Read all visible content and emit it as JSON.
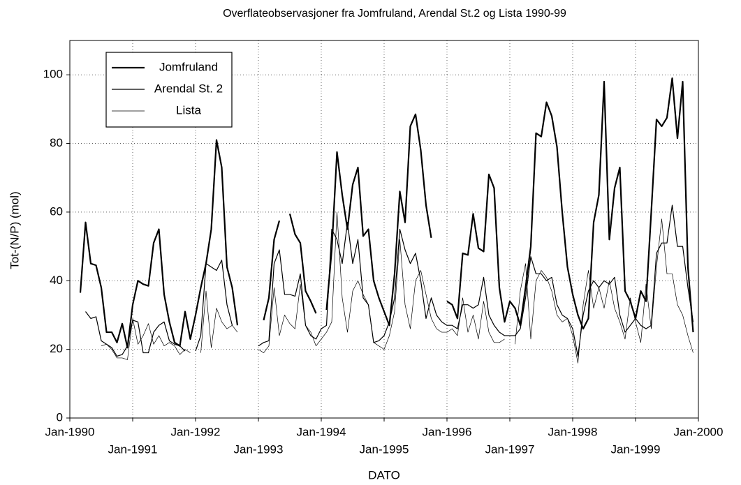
{
  "chart_data": {
    "type": "line",
    "title": "Overflateobservasjoner fra Jomfruland, Arendal St.2 og Lista 1990-99",
    "x_label": "DATO",
    "y_label": "Tot-(N/P) (mol)",
    "x": [
      "1990-03",
      "1990-04",
      "1990-05",
      "1990-06",
      "1990-07",
      "1990-08",
      "1990-09",
      "1990-10",
      "1990-11",
      "1990-12",
      "1991-01",
      "1991-02",
      "1991-03",
      "1991-04",
      "1991-05",
      "1991-06",
      "1991-07",
      "1991-08",
      "1991-09",
      "1991-10",
      "1991-11",
      "1991-12",
      "1992-01",
      "1992-02",
      "1992-03",
      "1992-04",
      "1992-05",
      "1992-06",
      "1992-07",
      "1992-08",
      "1992-09",
      "1992-10",
      "1992-11",
      "1992-12",
      "1993-01",
      "1993-02",
      "1993-03",
      "1993-04",
      "1993-05",
      "1993-06",
      "1993-07",
      "1993-08",
      "1993-09",
      "1993-10",
      "1993-11",
      "1993-12",
      "1994-01",
      "1994-02",
      "1994-03",
      "1994-04",
      "1994-05",
      "1994-06",
      "1994-07",
      "1994-08",
      "1994-09",
      "1994-10",
      "1994-11",
      "1994-12",
      "1995-01",
      "1995-02",
      "1995-03",
      "1995-04",
      "1995-05",
      "1995-06",
      "1995-07",
      "1995-08",
      "1995-09",
      "1995-10",
      "1995-11",
      "1995-12",
      "1996-01",
      "1996-02",
      "1996-03",
      "1996-04",
      "1996-05",
      "1996-06",
      "1996-07",
      "1996-08",
      "1996-09",
      "1996-10",
      "1996-11",
      "1996-12",
      "1997-01",
      "1997-02",
      "1997-03",
      "1997-04",
      "1997-05",
      "1997-06",
      "1997-07",
      "1997-08",
      "1997-09",
      "1997-10",
      "1997-11",
      "1997-12",
      "1998-01",
      "1998-02",
      "1998-03",
      "1998-04",
      "1998-05",
      "1998-06",
      "1998-07",
      "1998-08",
      "1998-09",
      "1998-10",
      "1998-11",
      "1998-12",
      "1999-01",
      "1999-02",
      "1999-03",
      "1999-04",
      "1999-05",
      "1999-06",
      "1999-07",
      "1999-08",
      "1999-09",
      "1999-10",
      "1999-11",
      "1999-12"
    ],
    "series": [
      {
        "name": "Jomfruland",
        "color": "#000000",
        "linewidth": 2.2,
        "values": [
          36.5,
          57,
          45,
          44.5,
          38,
          25,
          25,
          22,
          27.5,
          20.5,
          33,
          40,
          39,
          38.5,
          51,
          55,
          36,
          28,
          22,
          21,
          31,
          23,
          30,
          38,
          45,
          55,
          81,
          73,
          44,
          38,
          27,
          null,
          null,
          null,
          null,
          28.5,
          35,
          52,
          57.5,
          null,
          59.5,
          53.5,
          51,
          37,
          34,
          30.5,
          null,
          31.5,
          49,
          77.5,
          65,
          55,
          68,
          73,
          53,
          55,
          40,
          35,
          31,
          27,
          42,
          66,
          57,
          85,
          88.5,
          78,
          62,
          52.5,
          null,
          null,
          34,
          33,
          29,
          48,
          47.5,
          59.5,
          49.5,
          48.5,
          71,
          67,
          38,
          28,
          34,
          32,
          27,
          38,
          50,
          83,
          82,
          92,
          88,
          79,
          60,
          44,
          36,
          30,
          26,
          29,
          57,
          65,
          98,
          52,
          67,
          73,
          37,
          34,
          29,
          37,
          34,
          60,
          87,
          85,
          87.5,
          99,
          81.5,
          98,
          44,
          25
        ]
      },
      {
        "name": "Arendal St. 2",
        "color": "#000000",
        "linewidth": 1.2,
        "values": [
          null,
          31,
          29,
          29.5,
          22.5,
          21.5,
          20.5,
          18,
          18.5,
          21,
          28.5,
          28,
          19,
          19,
          25,
          27,
          28,
          22.5,
          21.5,
          21,
          19.5,
          null,
          19.5,
          24,
          45,
          44,
          43,
          46,
          33,
          27,
          null,
          null,
          null,
          null,
          21,
          22,
          22.5,
          45,
          49,
          36,
          36,
          35.5,
          42,
          27,
          24,
          23,
          26,
          27,
          55,
          52,
          45,
          57,
          45,
          52,
          35,
          33,
          22,
          22.5,
          24,
          28,
          35,
          55,
          49,
          45,
          48,
          40,
          29,
          35,
          30,
          28,
          27,
          27,
          26,
          33,
          33,
          32,
          33,
          41,
          30,
          27,
          25,
          24,
          24,
          24,
          26,
          35,
          47,
          42,
          42,
          40,
          41,
          33,
          30,
          29,
          26,
          18,
          30,
          37,
          40,
          38,
          40,
          39,
          41,
          30,
          25,
          27,
          29,
          27,
          26,
          27,
          48,
          51,
          51,
          62,
          50,
          50,
          38,
          28
        ]
      },
      {
        "name": "Lista",
        "color": "#000000",
        "linewidth": 0.7,
        "values": [
          null,
          null,
          null,
          null,
          21,
          21.5,
          20,
          17.5,
          17.5,
          17,
          29,
          21.5,
          24,
          27.5,
          21.5,
          24,
          21,
          22,
          21,
          18.5,
          20,
          19,
          null,
          19,
          37,
          20.5,
          32,
          28,
          26,
          27,
          25,
          null,
          null,
          null,
          20,
          19,
          21,
          38,
          24,
          30,
          27.5,
          26,
          39,
          27,
          25,
          21,
          23,
          25,
          28,
          60,
          35,
          25,
          37,
          40,
          36,
          33,
          22,
          21,
          20,
          24,
          31,
          52,
          33,
          26,
          40,
          43,
          36,
          29,
          26,
          25,
          25,
          26,
          24,
          35,
          25,
          30,
          23,
          34,
          25,
          22,
          22,
          23,
          null,
          21.5,
          37,
          45,
          23,
          40,
          43,
          41,
          37,
          30,
          28,
          29,
          24,
          16,
          33,
          43,
          32,
          38,
          32,
          40,
          32,
          28,
          23,
          35,
          28,
          22,
          39,
          26,
          44,
          58,
          42,
          42,
          33,
          30,
          24,
          19
        ]
      }
    ],
    "xlim": [
      "1990-01",
      "2000-01"
    ],
    "xticks": [
      {
        "value": "1990-01",
        "label": "Jan-1990"
      },
      {
        "value": "1991-01",
        "label": "Jan-1991"
      },
      {
        "value": "1992-01",
        "label": "Jan-1992"
      },
      {
        "value": "1993-01",
        "label": "Jan-1993"
      },
      {
        "value": "1994-01",
        "label": "Jan-1994"
      },
      {
        "value": "1995-01",
        "label": "Jan-1995"
      },
      {
        "value": "1996-01",
        "label": "Jan-1996"
      },
      {
        "value": "1997-01",
        "label": "Jan-1997"
      },
      {
        "value": "1998-01",
        "label": "Jan-1998"
      },
      {
        "value": "1999-01",
        "label": "Jan-1999"
      },
      {
        "value": "2000-01",
        "label": "Jan-2000"
      }
    ],
    "ylim": [
      0,
      110
    ],
    "yticks": [
      0,
      20,
      40,
      60,
      80,
      100
    ],
    "grid": true,
    "legend": "upper-left"
  }
}
